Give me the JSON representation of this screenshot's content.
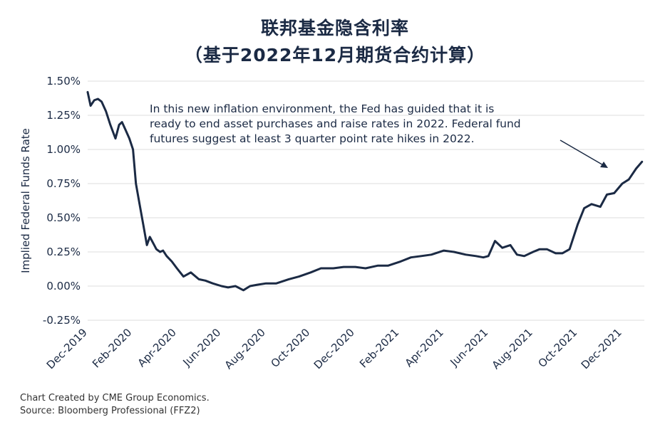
{
  "title_line1": "联邦基金隐含利率",
  "title_line2": "（基于2022年12月期货合约计算）",
  "footer_line1": "Chart Created by CME Group Economics.",
  "footer_line2": "Source:  Bloomberg Professional (FFZ2)",
  "chart_data": {
    "type": "line",
    "ylabel": "Implied Federal Funds Rate",
    "xlabel": "",
    "ylim": [
      -0.25,
      1.5
    ],
    "y_ticks": [
      "1.50%",
      "1.25%",
      "1.00%",
      "0.75%",
      "0.50%",
      "0.25%",
      "0.00%",
      "-0.25%"
    ],
    "y_tick_values": [
      1.5,
      1.25,
      1.0,
      0.75,
      0.5,
      0.25,
      0.0,
      -0.25
    ],
    "x_ticks": [
      "Dec-2019",
      "Feb-2020",
      "Apr-2020",
      "Jun-2020",
      "Aug-2020",
      "Oct-2020",
      "Dec-2020",
      "Feb-2021",
      "Apr-2021",
      "Jun-2021",
      "Aug-2021",
      "Oct-2021",
      "Dec-2021"
    ],
    "grid": true,
    "line_color": "#1b2a44",
    "annotation": "In this new inflation environment, the Fed has guided that it is ready to end asset purchases and raise rates in 2022. Federal fund futures suggest at least 3 quarter point rate hikes in 2022.",
    "series": [
      {
        "x": [
          "2019-12-01",
          "2019-12-05",
          "2019-12-10",
          "2019-12-15",
          "2019-12-20",
          "2019-12-26",
          "2020-01-01",
          "2020-01-08",
          "2020-01-13",
          "2020-01-17",
          "2020-01-22",
          "2020-01-27",
          "2020-02-01",
          "2020-02-05",
          "2020-02-10",
          "2020-02-15",
          "2020-02-20",
          "2020-02-24",
          "2020-02-27",
          "2020-03-01",
          "2020-03-04",
          "2020-03-09",
          "2020-03-13",
          "2020-03-18",
          "2020-03-25",
          "2020-04-01",
          "2020-04-10",
          "2020-04-20",
          "2020-05-01",
          "2020-05-10",
          "2020-05-20",
          "2020-06-01",
          "2020-06-10",
          "2020-06-20",
          "2020-07-01",
          "2020-07-10",
          "2020-07-20",
          "2020-08-01",
          "2020-08-15",
          "2020-09-01",
          "2020-09-15",
          "2020-10-01",
          "2020-10-15",
          "2020-11-01",
          "2020-11-15",
          "2020-12-01",
          "2020-12-15",
          "2021-01-01",
          "2021-01-15",
          "2021-02-01",
          "2021-02-15",
          "2021-03-01",
          "2021-03-15",
          "2021-04-01",
          "2021-04-15",
          "2021-05-01",
          "2021-05-15",
          "2021-05-25",
          "2021-06-01",
          "2021-06-10",
          "2021-06-20",
          "2021-07-01",
          "2021-07-10",
          "2021-07-20",
          "2021-08-01",
          "2021-08-10",
          "2021-08-20",
          "2021-09-01",
          "2021-09-10",
          "2021-09-20",
          "2021-10-01",
          "2021-10-10",
          "2021-10-20",
          "2021-11-01",
          "2021-11-10",
          "2021-11-20",
          "2021-12-01",
          "2021-12-10",
          "2021-12-20",
          "2021-12-28"
        ],
        "y": [
          1.42,
          1.32,
          1.36,
          1.37,
          1.35,
          1.28,
          1.18,
          1.08,
          1.18,
          1.2,
          1.14,
          1.08,
          1.0,
          0.75,
          0.6,
          0.45,
          0.3,
          0.36,
          0.33,
          0.3,
          0.27,
          0.25,
          0.26,
          0.22,
          0.18,
          0.13,
          0.07,
          0.1,
          0.05,
          0.04,
          0.02,
          0.0,
          -0.01,
          0.0,
          -0.03,
          0.0,
          0.01,
          0.02,
          0.02,
          0.05,
          0.07,
          0.1,
          0.13,
          0.13,
          0.14,
          0.14,
          0.13,
          0.15,
          0.15,
          0.18,
          0.21,
          0.22,
          0.23,
          0.26,
          0.25,
          0.23,
          0.22,
          0.21,
          0.22,
          0.33,
          0.28,
          0.3,
          0.23,
          0.22,
          0.25,
          0.27,
          0.27,
          0.24,
          0.24,
          0.27,
          0.45,
          0.57,
          0.6,
          0.58,
          0.67,
          0.68,
          0.75,
          0.78,
          0.86,
          0.91
        ]
      }
    ]
  }
}
